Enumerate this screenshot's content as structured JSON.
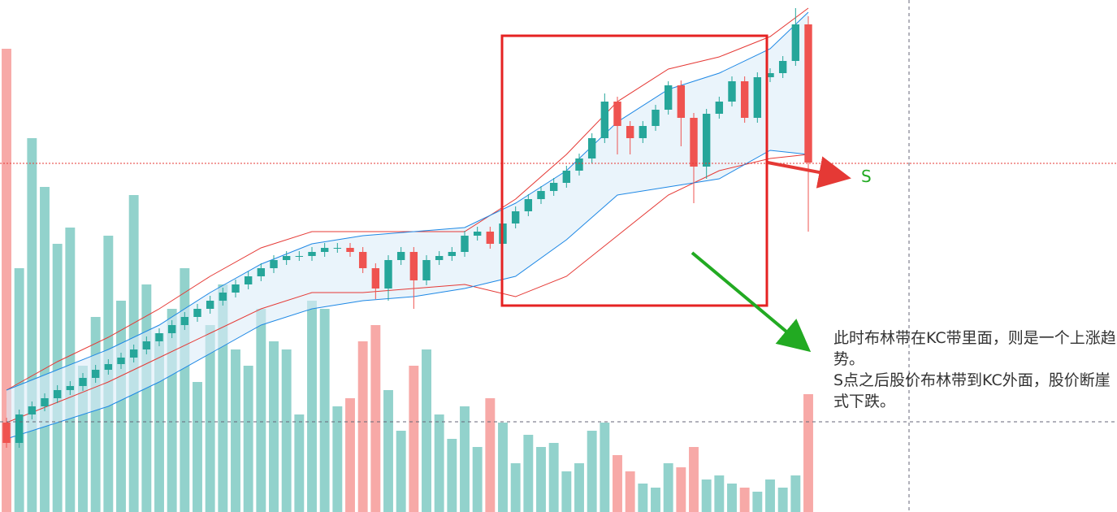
{
  "chart_data": {
    "type": "candlestick",
    "open": [
      110,
      85,
      120,
      130,
      140,
      150,
      155,
      165,
      175,
      182,
      190,
      200,
      210,
      220,
      230,
      240,
      250,
      260,
      270,
      280,
      290,
      300,
      310,
      315,
      315,
      320,
      325,
      325,
      320,
      300,
      275,
      310,
      320,
      285,
      310,
      315,
      320,
      340,
      345,
      330,
      355,
      370,
      385,
      395,
      405,
      420,
      435,
      460,
      505,
      475,
      460,
      475,
      495,
      525,
      485,
      425,
      490,
      505,
      530,
      485,
      535,
      540,
      555,
      600
    ],
    "high": [
      116,
      126,
      136,
      146,
      156,
      161,
      171,
      181,
      188,
      196,
      206,
      216,
      226,
      236,
      246,
      256,
      266,
      276,
      286,
      296,
      306,
      316,
      321,
      321,
      326,
      331,
      331,
      331,
      326,
      306,
      316,
      326,
      326,
      316,
      321,
      326,
      346,
      351,
      351,
      361,
      376,
      391,
      401,
      411,
      426,
      441,
      466,
      515,
      511,
      481,
      481,
      501,
      530,
      531,
      491,
      496,
      511,
      536,
      536,
      541,
      546,
      561,
      620,
      610
    ],
    "low": [
      79,
      79,
      114,
      124,
      134,
      144,
      149,
      159,
      169,
      176,
      184,
      194,
      204,
      214,
      224,
      234,
      244,
      254,
      264,
      274,
      284,
      294,
      304,
      309,
      309,
      314,
      319,
      314,
      294,
      262,
      260,
      304,
      250,
      279,
      304,
      309,
      314,
      334,
      324,
      324,
      349,
      364,
      379,
      389,
      399,
      414,
      429,
      454,
      440,
      440,
      454,
      469,
      489,
      450,
      380,
      410,
      484,
      499,
      479,
      479,
      529,
      534,
      549,
      345
    ],
    "close": [
      85,
      120,
      130,
      140,
      150,
      155,
      165,
      175,
      182,
      190,
      200,
      210,
      220,
      230,
      240,
      250,
      260,
      270,
      280,
      290,
      300,
      310,
      315,
      315,
      320,
      325,
      325,
      320,
      300,
      275,
      310,
      320,
      285,
      310,
      315,
      320,
      340,
      345,
      330,
      355,
      370,
      385,
      395,
      405,
      420,
      435,
      460,
      505,
      475,
      460,
      475,
      495,
      525,
      485,
      425,
      490,
      505,
      530,
      485,
      535,
      540,
      555,
      600,
      430
    ],
    "volume": [
      570,
      300,
      460,
      400,
      330,
      350,
      180,
      240,
      340,
      260,
      390,
      280,
      220,
      250,
      300,
      160,
      230,
      280,
      200,
      180,
      250,
      210,
      200,
      120,
      260,
      250,
      130,
      140,
      210,
      230,
      150,
      100,
      180,
      200,
      120,
      90,
      130,
      80,
      140,
      110,
      60,
      95,
      80,
      85,
      50,
      60,
      100,
      110,
      70,
      50,
      35,
      30,
      60,
      55,
      80,
      40,
      45,
      35,
      30,
      25,
      40,
      30,
      45,
      145
    ],
    "ylim": [
      0,
      630
    ],
    "volume_ylim": [
      0,
      630
    ],
    "up_color": "#26a69a",
    "down_color": "#ef5350",
    "band_x": [
      0,
      4,
      8,
      12,
      16,
      20,
      24,
      28,
      32,
      36,
      40,
      44,
      48,
      52,
      56,
      60,
      63
    ],
    "bands": [
      {
        "color": "#e53935",
        "values": [
          150,
          185,
          215,
          250,
          290,
          325,
          345,
          345,
          345,
          345,
          385,
          440,
          505,
          545,
          560,
          585,
          620
        ]
      },
      {
        "color": "#e53935",
        "values": [
          110,
          135,
          160,
          190,
          220,
          250,
          270,
          270,
          275,
          280,
          265,
          290,
          340,
          390,
          420,
          435,
          440
        ]
      },
      {
        "color": "#1e88e5",
        "values": [
          150,
          175,
          200,
          230,
          270,
          305,
          330,
          340,
          345,
          350,
          380,
          420,
          480,
          520,
          540,
          570,
          615
        ]
      },
      {
        "color": "#1e88e5",
        "values": [
          90,
          110,
          130,
          160,
          195,
          230,
          250,
          260,
          265,
          275,
          290,
          335,
          390,
          400,
          410,
          445,
          440
        ]
      }
    ],
    "annotations": {
      "point": "S",
      "note": [
        "此时布林带在KC带里面，则是一个上涨趋势。",
        "S点之后股价布林带到KC外面，股价断崖式下跌。"
      ]
    }
  }
}
